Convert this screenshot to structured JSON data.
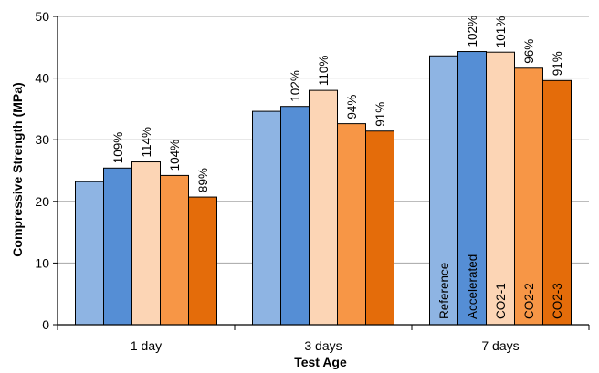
{
  "chart_data": {
    "type": "bar",
    "title": "",
    "xlabel": "Test Age",
    "ylabel": "Compressive Strength (MPa)",
    "ylim": [
      0,
      50
    ],
    "yticks": [
      0,
      10,
      20,
      30,
      40,
      50
    ],
    "grid": true,
    "categories": [
      "1 day",
      "3 days",
      "7 days"
    ],
    "series": [
      {
        "name": "Reference",
        "color": "#8EB4E3",
        "values": [
          23.2,
          34.6,
          43.6
        ],
        "labels": [
          "",
          "",
          ""
        ]
      },
      {
        "name": "Accelerated",
        "color": "#558ED5",
        "values": [
          25.4,
          35.4,
          44.3
        ],
        "labels": [
          "109%",
          "102%",
          "102%"
        ]
      },
      {
        "name": "CO2-1",
        "color": "#FCD5B5",
        "values": [
          26.4,
          38.0,
          44.2
        ],
        "labels": [
          "114%",
          "110%",
          "101%"
        ]
      },
      {
        "name": "CO2-2",
        "color": "#F79646",
        "values": [
          24.2,
          32.6,
          41.6
        ],
        "labels": [
          "104%",
          "94%",
          "96%"
        ]
      },
      {
        "name": "CO2-3",
        "color": "#E46C0A",
        "values": [
          20.7,
          31.4,
          39.6
        ],
        "labels": [
          "89%",
          "91%",
          "91%"
        ]
      }
    ],
    "series_label_group": 2,
    "colors": {
      "gridline": "#A6A6A6",
      "axis": "#000000",
      "bar_outline": "#000000"
    }
  }
}
